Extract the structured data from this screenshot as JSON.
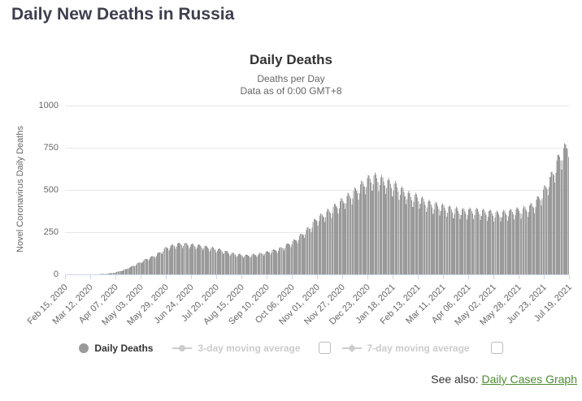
{
  "page": {
    "title": "Daily New Deaths in Russia",
    "see_also_label": "See also:",
    "see_also_link": "Daily Cases Graph"
  },
  "legend": {
    "daily": {
      "label": "Daily Deaths",
      "marker": "circle",
      "color": "#9a9a9a",
      "enabled": true
    },
    "avg3": {
      "label": "3-day moving average",
      "marker": "line-circle",
      "color": "#cccccc",
      "enabled": false,
      "checkbox_checked": false
    },
    "avg7": {
      "label": "7-day moving average",
      "marker": "line-diamond",
      "color": "#cccccc",
      "enabled": false,
      "checkbox_checked": false
    }
  },
  "chart_data": {
    "type": "bar",
    "title": "Daily Deaths",
    "subtitle": [
      "Deaths per Day",
      "Data as of 0:00 GMT+8"
    ],
    "series_name": "Daily Deaths",
    "ylabel": "Novel Coronavirus Daily Deaths",
    "ylim": [
      0,
      1000
    ],
    "yticks": [
      0,
      250,
      500,
      750,
      1000
    ],
    "grid": true,
    "legend_position": "bottom",
    "bar_color": "#9a9a9a",
    "x_start": "Feb 15, 2020",
    "x_end": "Jul 19, 2021",
    "x_tick_labels": [
      "Feb 15, 2020",
      "Mar 12, 2020",
      "Apr 07, 2020",
      "May 03, 2020",
      "May 29, 2020",
      "Jun 24, 2020",
      "Jul 20, 2020",
      "Aug 15, 2020",
      "Sep 10, 2020",
      "Oct 06, 2020",
      "Nov 01, 2020",
      "Nov 27, 2020",
      "Dec 23, 2020",
      "Jan 18, 2021",
      "Feb 13, 2021",
      "Mar 11, 2021",
      "Apr 06, 2021",
      "May 02, 2021",
      "May 28, 2021",
      "Jun 23, 2021",
      "Jul 19, 2021"
    ],
    "x_tick_day_offsets": [
      0,
      26,
      52,
      78,
      104,
      130,
      156,
      182,
      208,
      234,
      260,
      286,
      312,
      338,
      364,
      390,
      416,
      442,
      468,
      494,
      520
    ],
    "total_days": 521,
    "anchor_day_offsets": [
      0,
      7,
      14,
      21,
      28,
      35,
      42,
      49,
      56,
      63,
      70,
      77,
      84,
      91,
      98,
      105,
      112,
      119,
      126,
      133,
      140,
      147,
      154,
      161,
      168,
      175,
      182,
      189,
      196,
      203,
      210,
      217,
      224,
      231,
      238,
      245,
      252,
      259,
      266,
      273,
      280,
      287,
      294,
      301,
      308,
      315,
      322,
      329,
      336,
      343,
      350,
      357,
      364,
      371,
      378,
      385,
      392,
      399,
      406,
      413,
      420,
      427,
      434,
      441,
      448,
      455,
      462,
      469,
      476,
      483,
      490,
      497,
      504,
      511,
      518,
      520
    ],
    "anchor_values": [
      0,
      0,
      0,
      0,
      0,
      1,
      3,
      8,
      18,
      32,
      50,
      70,
      90,
      105,
      128,
      158,
      170,
      178,
      175,
      170,
      165,
      158,
      150,
      140,
      128,
      118,
      112,
      110,
      115,
      122,
      132,
      142,
      155,
      178,
      200,
      235,
      270,
      320,
      345,
      370,
      400,
      430,
      460,
      490,
      530,
      560,
      565,
      545,
      530,
      510,
      480,
      455,
      450,
      425,
      410,
      400,
      390,
      380,
      372,
      368,
      372,
      368,
      362,
      358,
      352,
      360,
      366,
      372,
      382,
      400,
      445,
      510,
      590,
      690,
      740,
      790
    ],
    "weekday_factors": [
      1.01,
      0.97,
      0.88,
      0.95,
      1.04,
      1.07,
      1.05
    ]
  }
}
